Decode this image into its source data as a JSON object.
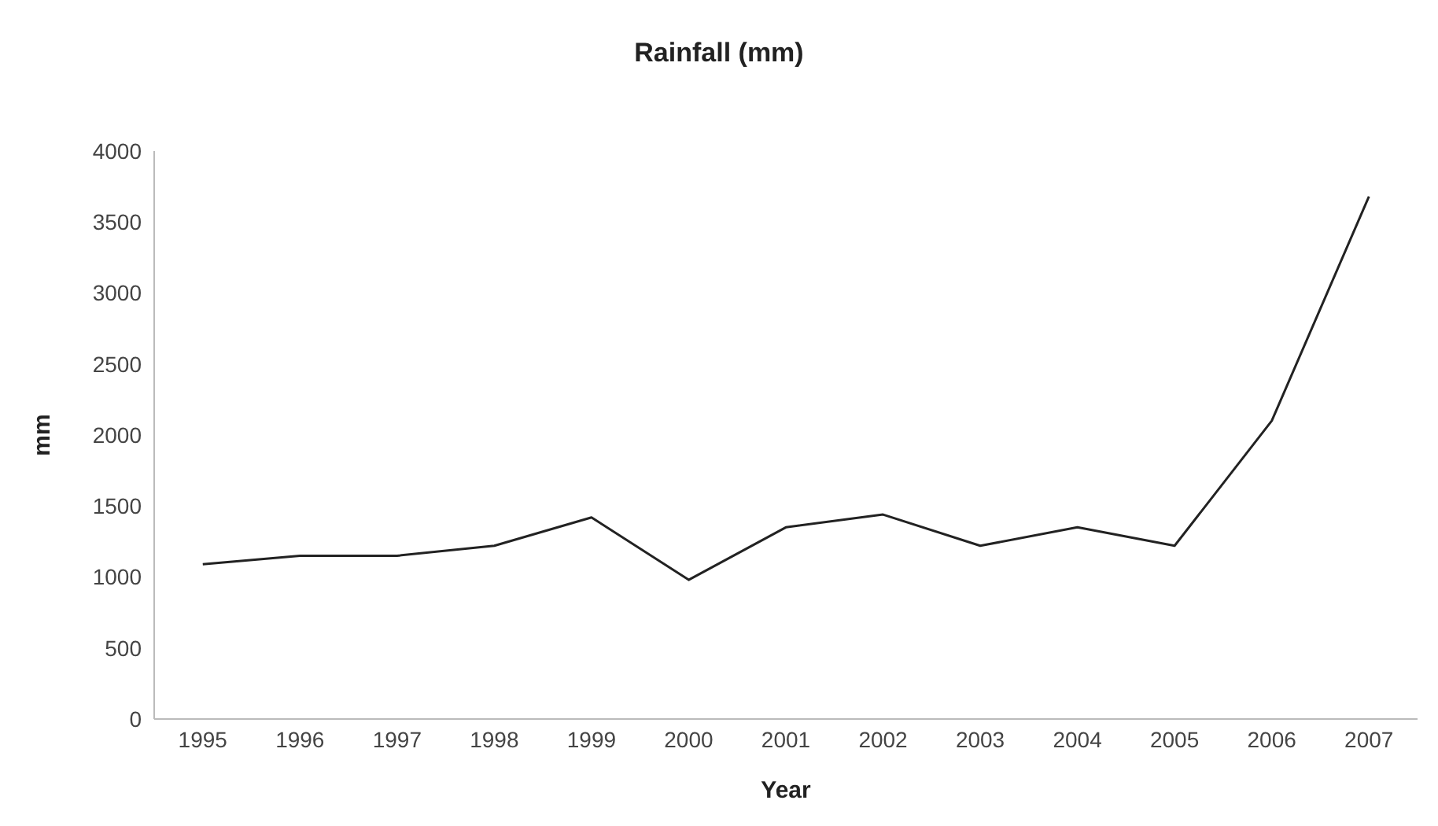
{
  "chart_data": {
    "type": "line",
    "title": "Rainfall (mm)",
    "xlabel": "Year",
    "ylabel": "mm",
    "categories": [
      "1995",
      "1996",
      "1997",
      "1998",
      "1999",
      "2000",
      "2001",
      "2002",
      "2003",
      "2004",
      "2005",
      "2006",
      "2007"
    ],
    "series": [
      {
        "color": "#222222",
        "values": [
          1090,
          1150,
          1150,
          1220,
          1420,
          980,
          1350,
          1440,
          1220,
          1350,
          1220,
          2100,
          3680
        ]
      }
    ],
    "ylim": [
      0,
      4000
    ],
    "yticks": [
      0,
      500,
      1000,
      1500,
      2000,
      2500,
      3000,
      3500,
      4000
    ],
    "marker": "none",
    "line_style": "solid"
  }
}
